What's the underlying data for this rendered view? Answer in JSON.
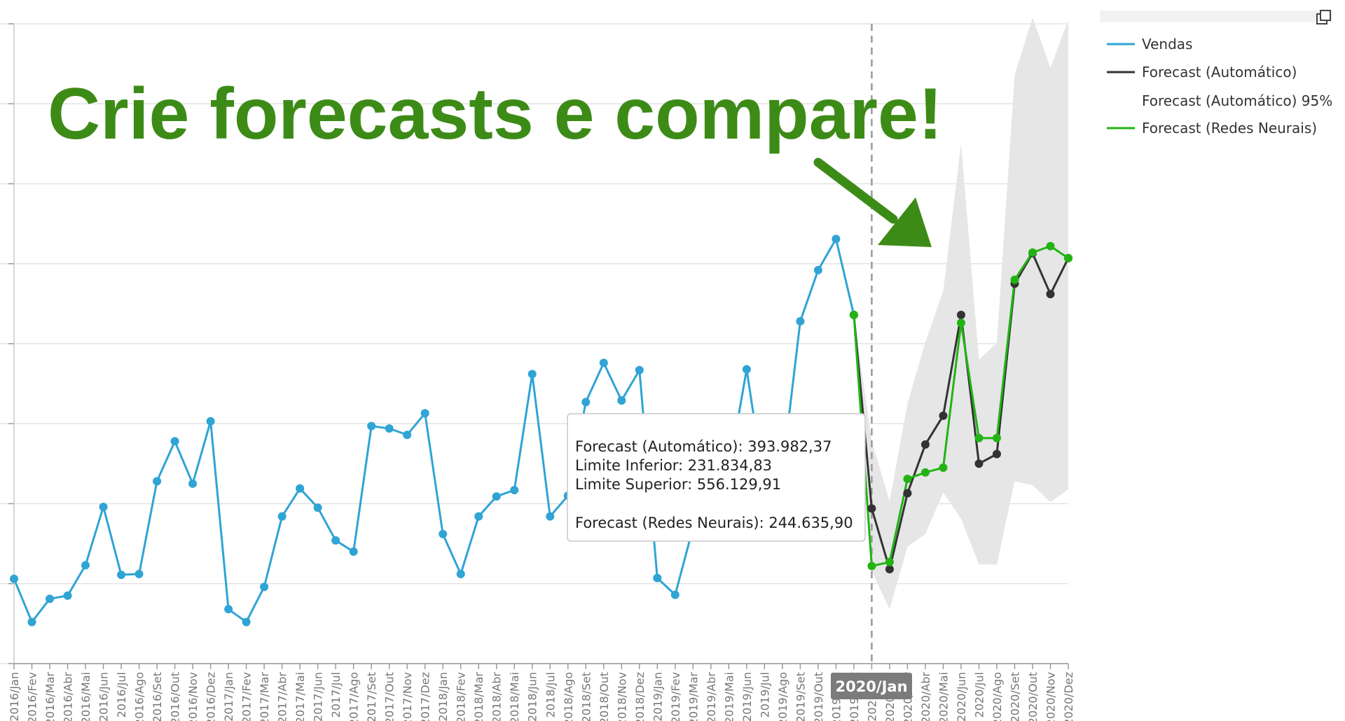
{
  "chart_data": {
    "type": "line",
    "headline": "Crie forecasts e compare!",
    "categories": [
      "2016/Jan",
      "2016/Fev",
      "2016/Mar",
      "2016/Abr",
      "2016/Mai",
      "2016/Jun",
      "2016/Jul",
      "2016/Ago",
      "2016/Set",
      "2016/Out",
      "2016/Nov",
      "2016/Dez",
      "2017/Jan",
      "2017/Fev",
      "2017/Mar",
      "2017/Abr",
      "2017/Mai",
      "2017/Jun",
      "2017/Jul",
      "2017/Ago",
      "2017/Set",
      "2017/Out",
      "2017/Nov",
      "2017/Dez",
      "2018/Jan",
      "2018/Fev",
      "2018/Mar",
      "2018/Abr",
      "2018/Mai",
      "2018/Jun",
      "2018/Jul",
      "2018/Ago",
      "2018/Set",
      "2018/Out",
      "2018/Nov",
      "2018/Dez",
      "2019/Jan",
      "2019/Fev",
      "2019/Mar",
      "2019/Abr",
      "2019/Mai",
      "2019/Jun",
      "2019/Jul",
      "2019/Ago",
      "2019/Set",
      "2019/Out",
      "2019/Nov",
      "2019/Dez",
      "2020/Jan",
      "2020/Fev",
      "2020/Mar",
      "2020/Abr",
      "2020/Mai",
      "2020/Jun",
      "2020/Jul",
      "2020/Ago",
      "2020/Set",
      "2020/Out",
      "2020/Nov",
      "2020/Dez"
    ],
    "ylim": [
      0,
      8
    ],
    "grid": true,
    "legend_position": "right",
    "series": [
      {
        "name": "Vendas",
        "color": "#2fa4d5",
        "values": [
          1.06,
          0.52,
          0.81,
          0.85,
          1.23,
          1.96,
          1.11,
          1.12,
          2.28,
          2.78,
          2.25,
          3.03,
          0.68,
          0.52,
          0.96,
          1.84,
          2.19,
          1.95,
          1.54,
          1.4,
          2.97,
          2.94,
          2.86,
          3.13,
          1.62,
          1.12,
          1.84,
          2.09,
          2.17,
          3.62,
          1.84,
          2.1,
          3.27,
          3.76,
          3.29,
          3.67,
          1.07,
          0.86,
          1.7,
          2.1,
          2.4,
          3.68,
          2.2,
          2.4,
          4.28,
          4.92,
          5.31,
          4.36,
          null,
          null,
          null,
          null,
          null,
          null,
          null,
          null,
          null,
          null,
          null,
          null
        ]
      },
      {
        "name": "Forecast (Automático)",
        "color": "#333333",
        "values": [
          null,
          null,
          null,
          null,
          null,
          null,
          null,
          null,
          null,
          null,
          null,
          null,
          null,
          null,
          null,
          null,
          null,
          null,
          null,
          null,
          null,
          null,
          null,
          null,
          null,
          null,
          null,
          null,
          null,
          null,
          null,
          null,
          null,
          null,
          null,
          null,
          null,
          null,
          null,
          null,
          null,
          null,
          null,
          null,
          null,
          null,
          null,
          4.36,
          1.94,
          1.18,
          2.13,
          2.74,
          3.1,
          4.36,
          2.5,
          2.62,
          4.75,
          5.13,
          4.62,
          5.07
        ]
      },
      {
        "name": "Forecast (Automático) 95%",
        "color": "#e6e6e6",
        "lower": [
          null,
          null,
          null,
          null,
          null,
          null,
          null,
          null,
          null,
          null,
          null,
          null,
          null,
          null,
          null,
          null,
          null,
          null,
          null,
          null,
          null,
          null,
          null,
          null,
          null,
          null,
          null,
          null,
          null,
          null,
          null,
          null,
          null,
          null,
          null,
          null,
          null,
          null,
          null,
          null,
          null,
          null,
          null,
          null,
          null,
          null,
          null,
          4.36,
          1.16,
          0.68,
          1.46,
          1.62,
          2.14,
          1.81,
          1.24,
          1.24,
          2.28,
          2.23,
          2.02,
          2.18
        ],
        "upper": [
          null,
          null,
          null,
          null,
          null,
          null,
          null,
          null,
          null,
          null,
          null,
          null,
          null,
          null,
          null,
          null,
          null,
          null,
          null,
          null,
          null,
          null,
          null,
          null,
          null,
          null,
          null,
          null,
          null,
          null,
          null,
          null,
          null,
          null,
          null,
          null,
          null,
          null,
          null,
          null,
          null,
          null,
          null,
          null,
          null,
          null,
          null,
          4.36,
          2.78,
          2.03,
          3.25,
          4.02,
          4.66,
          6.5,
          3.8,
          4.01,
          7.36,
          8.08,
          7.45,
          8.05
        ]
      },
      {
        "name": "Forecast (Redes Neurais)",
        "color": "#22b413",
        "values": [
          null,
          null,
          null,
          null,
          null,
          null,
          null,
          null,
          null,
          null,
          null,
          null,
          null,
          null,
          null,
          null,
          null,
          null,
          null,
          null,
          null,
          null,
          null,
          null,
          null,
          null,
          null,
          null,
          null,
          null,
          null,
          null,
          null,
          null,
          null,
          null,
          null,
          null,
          null,
          null,
          null,
          null,
          null,
          null,
          null,
          null,
          null,
          4.36,
          1.22,
          1.27,
          2.31,
          2.39,
          2.45,
          4.26,
          2.82,
          2.82,
          4.8,
          5.14,
          5.22,
          5.07
        ]
      }
    ],
    "vertical_marker": "2020/Jan",
    "tooltip": {
      "line1": "Forecast (Automático): 393.982,37",
      "line2": "Limite Inferior: 231.834,83",
      "line3": "Limite Superior: 556.129,91",
      "line4": "Forecast (Redes Neurais): 244.635,90"
    }
  },
  "ui": {
    "expand_icon": "expand-window-icon"
  }
}
